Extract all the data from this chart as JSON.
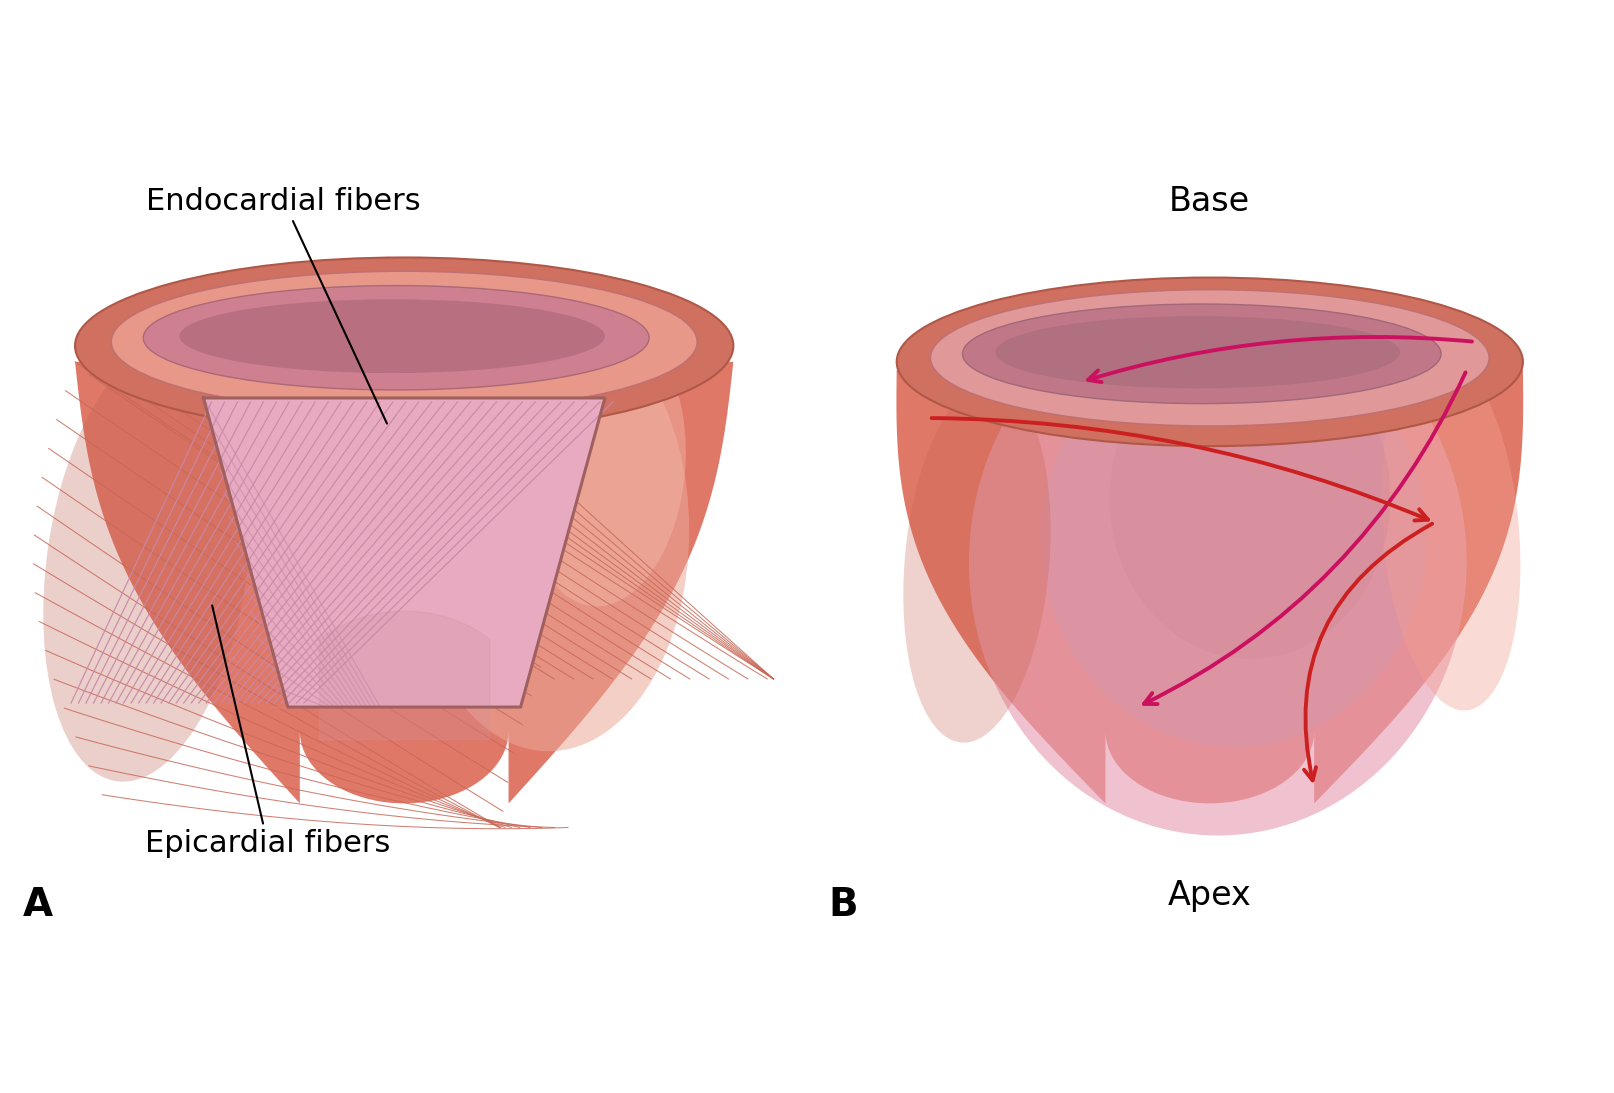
{
  "background_color": "#ffffff",
  "label_A": "A",
  "label_B": "B",
  "label_endocardial": "Endocardial fibers",
  "label_epicardial": "Epicardial fibers",
  "label_base": "Base",
  "label_apex": "Apex",
  "outer_body_color": "#e07868",
  "highlight_color": "#eda898",
  "bright_highlight": "#f0b8a8",
  "rim_outer_color": "#d07060",
  "rim_mid_color": "#e89888",
  "rim_inner_color": "#cf8090",
  "rim_lumen_color": "#b87080",
  "cut_fill_color": "#e8aac0",
  "cut_hatch_color": "#c888a8",
  "cut_border_color": "#a06060",
  "fiber_line_color": "#c86858",
  "heartB_glow1": "#e8a0b5",
  "heartB_glow2": "#d898aa",
  "heartB_glow3": "#d08898",
  "arrow_red": "#cc2020",
  "arrow_magenta": "#cc1060",
  "font_size_labels": 22,
  "font_size_AB": 28,
  "font_size_base_apex": 24
}
